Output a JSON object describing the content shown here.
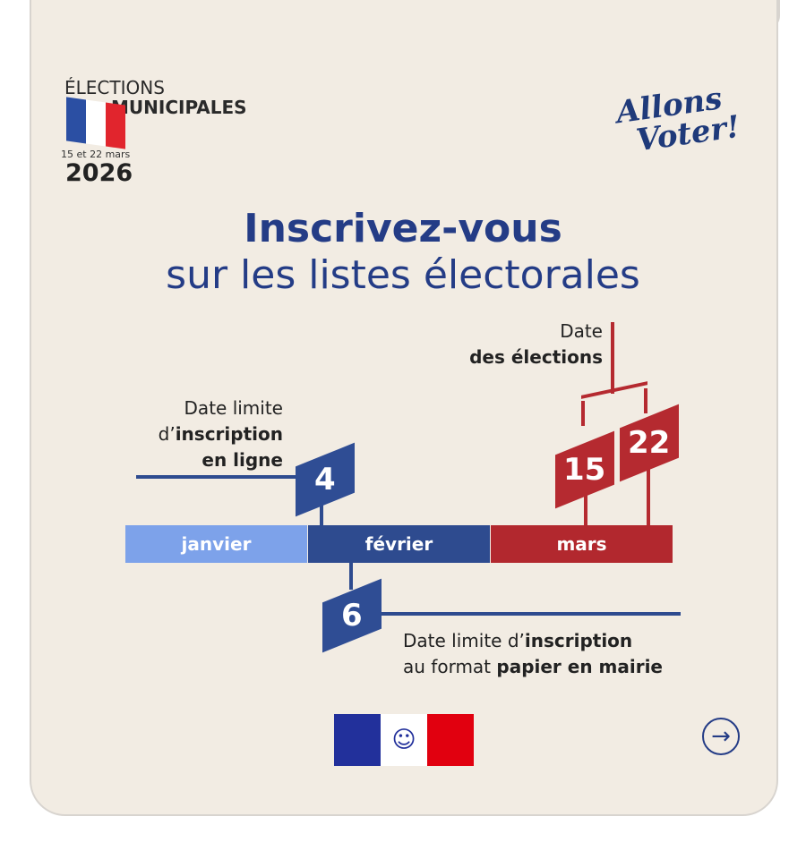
{
  "header": {
    "line1": "ÉLECTIONS",
    "line2": "MUNICIPALES",
    "dates": "15 et 22 mars",
    "year": "2026",
    "flag_colors": [
      "#2b4fa3",
      "#ffffff",
      "#e1252d"
    ]
  },
  "slogan": {
    "line1": "Allons",
    "line2": "Voter!"
  },
  "title": {
    "bold": "Inscrivez-vous",
    "regular": "sur les listes électorales"
  },
  "timeline": {
    "months": [
      {
        "label": "janvier",
        "color": "#7da2ea"
      },
      {
        "label": "février",
        "color": "#2e4b8f"
      },
      {
        "label": "mars",
        "color": "#b2282e"
      }
    ],
    "online": {
      "day": "4",
      "l1": "Date limite",
      "l2a": "d’",
      "l2b": "inscription",
      "l3": "en ligne"
    },
    "paper": {
      "day": "6",
      "l1a": "Date limite d’",
      "l1b": "inscription",
      "l2a": "au format ",
      "l2b": "papier en mairie"
    },
    "elections": {
      "days": [
        "15",
        "22"
      ],
      "l1": "Date",
      "l2": "des élections"
    }
  },
  "footer": {
    "next_icon": "arrow-right-circle-icon",
    "logo": "Marianne République Française"
  }
}
